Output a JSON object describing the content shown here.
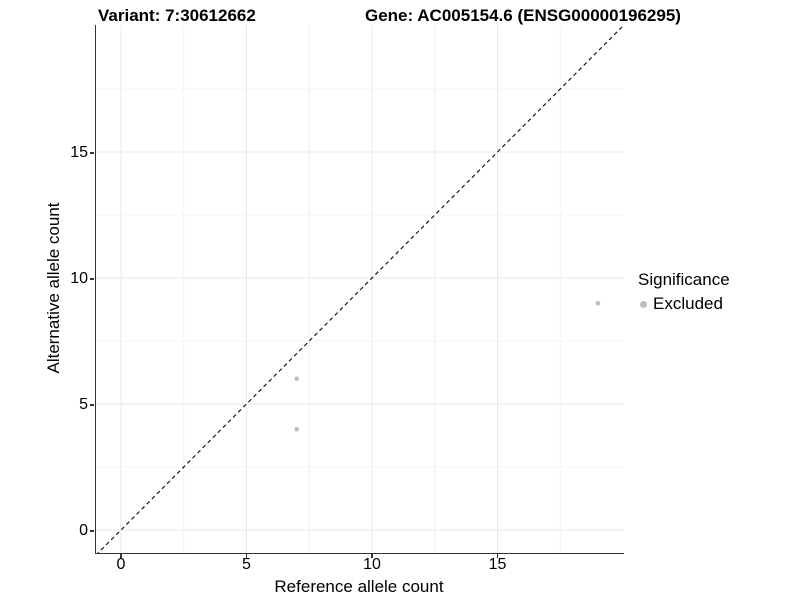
{
  "colors": {
    "point": "#bdbdbd",
    "grid_major": "#e9e9e9",
    "grid_minor": "#f4f4f4",
    "axis_line": "#333333",
    "identity_line": "#1a1a1a",
    "text": "#000000"
  },
  "chart_data": {
    "type": "scatter",
    "title_left": "Variant: 7:30612662",
    "title_right": "Gene: AC005154.6 (ENSG00000196295)",
    "xlabel": "Reference allele count",
    "ylabel": "Alternative allele count",
    "xlim": [
      -1,
      20.1
    ],
    "ylim": [
      -0.9,
      20.1
    ],
    "x_major_ticks": [
      0,
      5,
      10,
      15
    ],
    "x_minor_ticks": [
      2.5,
      7.5,
      12.5,
      17.5
    ],
    "y_major_ticks": [
      0,
      5,
      10,
      15
    ],
    "y_minor_ticks": [
      2.5,
      7.5,
      12.5,
      17.5
    ],
    "grid": true,
    "identity_line": {
      "style": "dashed",
      "equation": "y = x",
      "color": "#1a1a1a"
    },
    "legend": {
      "title": "Significance",
      "position": "right",
      "items": [
        {
          "label": "Excluded",
          "color": "#bdbdbd"
        }
      ]
    },
    "series": [
      {
        "name": "Excluded",
        "color": "#bdbdbd",
        "points": [
          {
            "x": 7,
            "y": 6
          },
          {
            "x": 7,
            "y": 4
          },
          {
            "x": 19,
            "y": 9
          }
        ]
      }
    ]
  }
}
